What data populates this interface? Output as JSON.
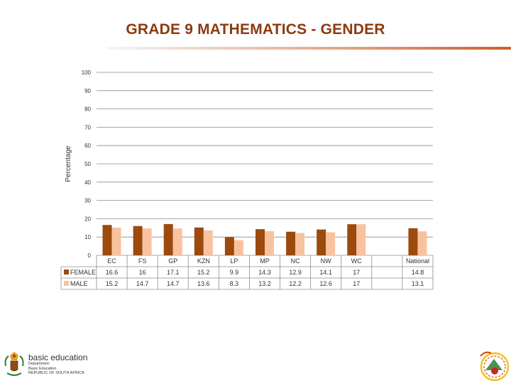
{
  "page": {
    "title": "GRADE 9 MATHEMATICS - GENDER",
    "logo_left": {
      "main": "basic education",
      "line1": "Department:",
      "line2": "Basic Education",
      "line3": "REPUBLIC OF SOUTH AFRICA"
    },
    "colors": {
      "female": "#9C4A0E",
      "male": "#F9C29E",
      "title": "#8B3A0F"
    }
  },
  "chart_data": {
    "type": "bar",
    "title": "",
    "xlabel": "",
    "ylabel": "Percentage",
    "ylim": [
      0,
      100
    ],
    "yticks": [
      0,
      10,
      20,
      30,
      40,
      50,
      60,
      70,
      80,
      90,
      100
    ],
    "grid": true,
    "legend": "data-table",
    "categories": [
      "EC",
      "FS",
      "GP",
      "KZN",
      "LP",
      "MP",
      "NC",
      "NW",
      "WC",
      "",
      "National"
    ],
    "series": [
      {
        "name": "FEMALE",
        "values": [
          16.6,
          16,
          17.1,
          15.2,
          9.9,
          14.3,
          12.9,
          14.1,
          17,
          null,
          14.8
        ],
        "labels": [
          "16.6",
          "16",
          "17.1",
          "15.2",
          "9.9",
          "14.3",
          "12.9",
          "14.1",
          "17",
          "",
          "14.8"
        ]
      },
      {
        "name": "MALE",
        "values": [
          15.2,
          14.7,
          14.7,
          13.6,
          8.3,
          13.2,
          12.2,
          12.6,
          17,
          null,
          13.1
        ],
        "labels": [
          "15.2",
          "14.7",
          "14.7",
          "13.6",
          "8.3",
          "13.2",
          "12.2",
          "12.6",
          "17",
          "",
          "13.1"
        ]
      }
    ]
  }
}
